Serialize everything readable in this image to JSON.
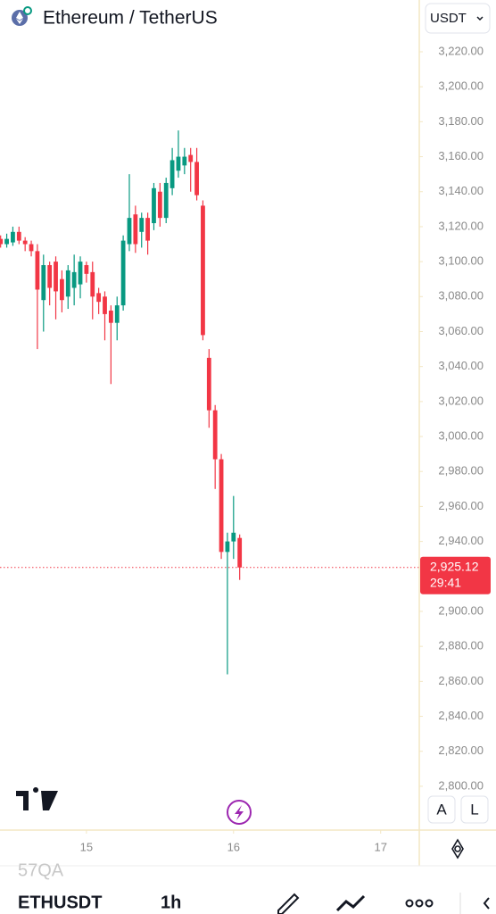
{
  "header": {
    "title": "Ethereum / TetherUS",
    "currency": "USDT"
  },
  "chart_data": {
    "type": "candlestick",
    "x": [
      10,
      11,
      12,
      13,
      14,
      15,
      16,
      17,
      18,
      19,
      20,
      21,
      22,
      23,
      24,
      25,
      26,
      27,
      28,
      29,
      30,
      31,
      32,
      33,
      34,
      35,
      36,
      37,
      38,
      39,
      40,
      41,
      42,
      43,
      44,
      45,
      46,
      47,
      48,
      49
    ],
    "open": [
      3113,
      3110,
      3111,
      3117,
      3112,
      3110,
      3106,
      3078,
      3098,
      3100,
      3090,
      3080,
      3085,
      3087,
      3098,
      3094,
      3082,
      3080,
      3072,
      3065,
      3075,
      3110,
      3127,
      3117,
      3125,
      3122,
      3140,
      3125,
      3142,
      3152,
      3155,
      3161,
      3157,
      3132,
      3045,
      3015,
      2987,
      2934,
      2940,
      2942
    ],
    "high": [
      3115,
      3116,
      3120,
      3120,
      3114,
      3112,
      3110,
      3104,
      3100,
      3103,
      3095,
      3098,
      3104,
      3103,
      3100,
      3100,
      3085,
      3083,
      3075,
      3080,
      3115,
      3150,
      3132,
      3128,
      3128,
      3145,
      3145,
      3148,
      3165,
      3175,
      3165,
      3165,
      3165,
      3135,
      3050,
      3018,
      2990,
      2945,
      2966,
      2944
    ],
    "low": [
      3108,
      3108,
      3109,
      3110,
      3106,
      3103,
      3050,
      3060,
      3075,
      3067,
      3071,
      3073,
      3075,
      3079,
      3088,
      3067,
      3070,
      3055,
      3030,
      3055,
      3072,
      3106,
      3105,
      3108,
      3104,
      3118,
      3120,
      3122,
      3138,
      3148,
      3150,
      3140,
      3135,
      3055,
      3005,
      2970,
      2930,
      2864,
      2930,
      2918
    ],
    "close": [
      3110,
      3113,
      3117,
      3112,
      3110,
      3106,
      3084,
      3098,
      3085,
      3083,
      3078,
      3095,
      3094,
      3100,
      3093,
      3080,
      3077,
      3070,
      3065,
      3075,
      3112,
      3125,
      3110,
      3125,
      3112,
      3142,
      3125,
      3145,
      3158,
      3160,
      3160,
      3157,
      3138,
      3058,
      3015,
      2987,
      2934,
      2940,
      2945,
      2925.12
    ],
    "up_color": "#089981",
    "down_color": "#f23645",
    "xlim": [
      9.9,
      78.3
    ],
    "xticks": [
      {
        "value": 24,
        "label": "15"
      },
      {
        "value": 48,
        "label": "16"
      },
      {
        "value": 72,
        "label": "17"
      }
    ],
    "ylim": [
      2797.4,
      3220
    ],
    "yticks": [
      {
        "value": 3220,
        "label": "3,220.00"
      },
      {
        "value": 3200,
        "label": "3,200.00"
      },
      {
        "value": 3180,
        "label": "3,180.00"
      },
      {
        "value": 3160,
        "label": "3,160.00"
      },
      {
        "value": 3140,
        "label": "3,140.00"
      },
      {
        "value": 3120,
        "label": "3,120.00"
      },
      {
        "value": 3100,
        "label": "3,100.00"
      },
      {
        "value": 3080,
        "label": "3,080.00"
      },
      {
        "value": 3060,
        "label": "3,060.00"
      },
      {
        "value": 3040,
        "label": "3,040.00"
      },
      {
        "value": 3020,
        "label": "3,020.00"
      },
      {
        "value": 3000,
        "label": "3,000.00"
      },
      {
        "value": 2980,
        "label": "2,980.00"
      },
      {
        "value": 2960,
        "label": "2,960.00"
      },
      {
        "value": 2940,
        "label": "2,940.00"
      },
      {
        "value": 2900,
        "label": "2,900.00"
      },
      {
        "value": 2880,
        "label": "2,880.00"
      },
      {
        "value": 2860,
        "label": "2,860.00"
      },
      {
        "value": 2840,
        "label": "2,840.00"
      },
      {
        "value": 2820,
        "label": "2,820.00"
      },
      {
        "value": 2800,
        "label": "2,800.00"
      }
    ],
    "price_line": {
      "value": 2925.12,
      "label": "2,925.12",
      "countdown": "29:41"
    }
  },
  "toolbar": {
    "symbol": "ETHUSDT",
    "interval": "1h",
    "auto": "A",
    "log": "L",
    "faded": "57QA"
  }
}
